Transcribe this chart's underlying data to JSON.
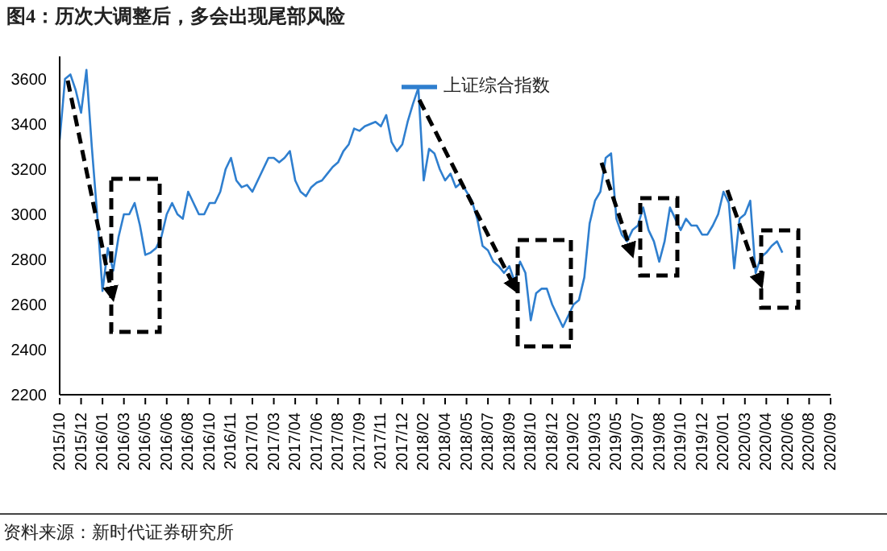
{
  "chart_data": {
    "type": "line",
    "title": "图4：历次大调整后，多会出现尾部风险",
    "annotations": [
      "资料来源：新时代证券研究所"
    ],
    "categories": [
      "2015/10",
      null,
      null,
      null,
      "2015/12",
      null,
      null,
      null,
      "2016/01",
      null,
      null,
      null,
      "2016/03",
      null,
      null,
      null,
      "2016/05",
      null,
      null,
      null,
      "2016/06",
      null,
      null,
      null,
      "2016/08",
      null,
      null,
      null,
      "2016/10",
      null,
      null,
      null,
      "2016/11",
      null,
      null,
      null,
      "2017/01",
      null,
      null,
      null,
      "2017/03",
      null,
      null,
      null,
      "2017/04",
      null,
      null,
      null,
      "2017/06",
      null,
      null,
      null,
      "2017/08",
      null,
      null,
      null,
      "2017/09",
      null,
      null,
      null,
      "2017/11",
      null,
      null,
      null,
      "2017/12",
      null,
      null,
      null,
      "2018/02",
      null,
      null,
      null,
      "2018/04",
      null,
      null,
      null,
      "2018/05",
      null,
      null,
      null,
      "2018/07",
      null,
      null,
      null,
      "2018/09",
      null,
      null,
      null,
      "2018/10",
      null,
      null,
      null,
      "2018/12",
      null,
      null,
      null,
      "2019/02",
      null,
      null,
      null,
      "2019/03",
      null,
      null,
      null,
      "2019/05",
      null,
      null,
      null,
      "2019/07",
      null,
      null,
      null,
      "2019/08",
      null,
      null,
      null,
      "2019/10",
      null,
      null,
      null,
      "2019/12",
      null,
      null,
      null,
      "2020/01",
      null,
      null,
      null,
      "2020/03",
      null,
      null,
      null,
      "2020/04",
      null,
      null,
      null,
      "2020/06",
      null,
      null,
      null,
      "2020/08",
      null,
      null,
      null,
      "2020/09"
    ],
    "series": [
      {
        "name": "上证综合指数",
        "color": "#2f7fcf",
        "values": [
          3330,
          3600,
          3620,
          3550,
          3450,
          3640,
          3300,
          3000,
          2660,
          2850,
          2750,
          2900,
          3000,
          3000,
          3050,
          2950,
          2820,
          2830,
          2850,
          2900,
          3000,
          3050,
          3000,
          2980,
          3100,
          3050,
          3000,
          3000,
          3050,
          3050,
          3100,
          3200,
          3250,
          3150,
          3120,
          3130,
          3100,
          3150,
          3200,
          3250,
          3250,
          3230,
          3250,
          3280,
          3150,
          3100,
          3080,
          3120,
          3140,
          3150,
          3180,
          3210,
          3230,
          3280,
          3310,
          3380,
          3370,
          3390,
          3400,
          3410,
          3390,
          3440,
          3320,
          3280,
          3310,
          3410,
          3490,
          3560,
          3150,
          3290,
          3270,
          3200,
          3150,
          3180,
          3120,
          3140,
          3100,
          3060,
          2980,
          2860,
          2840,
          2790,
          2770,
          2740,
          2770,
          2700,
          2790,
          2740,
          2530,
          2650,
          2670,
          2670,
          2600,
          2550,
          2500,
          2550,
          2600,
          2620,
          2720,
          2960,
          3060,
          3100,
          3250,
          3270,
          2980,
          2910,
          2880,
          2930,
          2950,
          3030,
          2930,
          2880,
          2790,
          2880,
          3030,
          2980,
          2930,
          2980,
          2950,
          2950,
          2910,
          2910,
          2950,
          3000,
          3100,
          3050,
          2760,
          2980,
          3000,
          3060,
          2740,
          2810,
          2830,
          2860,
          2880,
          2830,
          null,
          null,
          null,
          null,
          null,
          null,
          null,
          null,
          null
        ]
      }
    ],
    "ylim": [
      2200,
      3700
    ],
    "yticks": [
      2200,
      2400,
      2600,
      2800,
      3000,
      3200,
      3400,
      3600
    ],
    "grid": false,
    "legend": "top",
    "marker": "none",
    "line_style": "solid"
  }
}
